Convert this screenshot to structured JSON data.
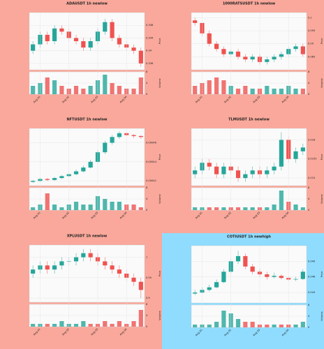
{
  "chart_data": [
    {
      "type": "candlestick",
      "title": "ADAUSDT 1h newlow",
      "background": "#f9a89b",
      "ylabel": "Price",
      "volume_label": "Volume",
      "categories": [
        null,
        "Aug 01",
        null,
        null,
        null,
        "Aug 02",
        null,
        null,
        null,
        "Aug 03",
        null,
        null,
        null,
        "Aug 04",
        null,
        null
      ],
      "open": [
        0.34,
        0.342,
        0.345,
        0.343,
        0.347,
        0.346,
        0.344,
        0.343,
        0.341,
        0.343,
        0.346,
        0.349,
        0.344,
        0.342,
        0.341,
        0.34
      ],
      "high": [
        0.343,
        0.346,
        0.346,
        0.348,
        0.348,
        0.347,
        0.345,
        0.344,
        0.344,
        0.347,
        0.35,
        0.35,
        0.345,
        0.343,
        0.342,
        0.341
      ],
      "low": [
        0.339,
        0.341,
        0.342,
        0.342,
        0.345,
        0.343,
        0.342,
        0.34,
        0.34,
        0.342,
        0.345,
        0.343,
        0.341,
        0.34,
        0.339,
        0.335
      ],
      "close": [
        0.342,
        0.345,
        0.343,
        0.347,
        0.346,
        0.344,
        0.343,
        0.341,
        0.343,
        0.346,
        0.349,
        0.344,
        0.342,
        0.341,
        0.34,
        0.336
      ],
      "volume": [
        3,
        4,
        6,
        5,
        3,
        2,
        3,
        2,
        3,
        5,
        7,
        4,
        3,
        2,
        2,
        6
      ],
      "ylim": [
        0.334,
        0.352
      ],
      "yticks": [
        0.336,
        0.34,
        0.344,
        0.348
      ],
      "volume_ylim": [
        0,
        8
      ],
      "volume_yticks": [
        0,
        4,
        8
      ],
      "up_color": "#26a69a",
      "down_color": "#ef5350"
    },
    {
      "type": "candlestick",
      "title": "1000RATSUSDT 1h newlow",
      "background": "#f9a89b",
      "ylabel": "Price",
      "volume_label": "Volume",
      "categories": [
        null,
        "Aug 01",
        null,
        null,
        null,
        "Aug 02",
        null,
        null,
        null,
        "Aug 03",
        null,
        null,
        null,
        "Aug 04",
        null,
        null
      ],
      "open": [
        0.099,
        0.098,
        0.094,
        0.09,
        0.088,
        0.086,
        0.087,
        0.085,
        0.084,
        0.085,
        0.083,
        0.084,
        0.085,
        0.086,
        0.088,
        0.089
      ],
      "high": [
        0.1,
        0.098,
        0.095,
        0.091,
        0.089,
        0.088,
        0.088,
        0.086,
        0.086,
        0.086,
        0.085,
        0.086,
        0.087,
        0.089,
        0.09,
        0.09
      ],
      "low": [
        0.097,
        0.093,
        0.089,
        0.087,
        0.085,
        0.085,
        0.084,
        0.083,
        0.083,
        0.082,
        0.082,
        0.083,
        0.084,
        0.085,
        0.087,
        0.085
      ],
      "close": [
        0.098,
        0.094,
        0.09,
        0.088,
        0.086,
        0.087,
        0.085,
        0.084,
        0.085,
        0.083,
        0.084,
        0.085,
        0.086,
        0.088,
        0.089,
        0.086
      ],
      "volume": [
        3,
        4,
        5,
        6,
        5,
        3,
        2,
        3,
        2,
        2,
        3,
        2,
        2,
        3,
        2,
        2
      ],
      "ylim": [
        0.08,
        0.102
      ],
      "yticks": [
        0.085,
        0.09,
        0.095,
        0.1
      ],
      "volume_ylim": [
        0,
        8
      ],
      "volume_yticks": [
        0,
        4,
        8
      ],
      "up_color": "#26a69a",
      "down_color": "#ef5350"
    },
    {
      "type": "candlestick",
      "title": "NFTUSDT 1h newlow",
      "background": "#f9a89b",
      "ylabel": "Price",
      "volume_label": "Volume",
      "categories": [
        null,
        "Aug 01",
        null,
        null,
        null,
        "Aug 02",
        null,
        null,
        null,
        "Aug 03",
        null,
        null,
        null,
        "Aug 04",
        null,
        null
      ],
      "open": [
        0.000419,
        0.00042,
        0.000422,
        0.000421,
        0.000423,
        0.000425,
        0.000427,
        0.00043,
        0.000434,
        0.00044,
        0.00045,
        0.00046,
        0.000466,
        0.00047,
        0.000468,
        0.000467
      ],
      "high": [
        0.000421,
        0.000423,
        0.000423,
        0.000424,
        0.000426,
        0.000428,
        0.000432,
        0.000436,
        0.000442,
        0.000452,
        0.000462,
        0.000468,
        0.000472,
        0.000471,
        0.000469,
        0.000468
      ],
      "low": [
        0.000418,
        0.000419,
        0.00042,
        0.00042,
        0.000422,
        0.000424,
        0.000426,
        0.000429,
        0.000433,
        0.000439,
        0.000448,
        0.000458,
        0.000464,
        0.000466,
        0.000465,
        0.000464
      ],
      "close": [
        0.00042,
        0.000422,
        0.000421,
        0.000423,
        0.000425,
        0.000427,
        0.00043,
        0.000434,
        0.00044,
        0.00045,
        0.00046,
        0.000466,
        0.00047,
        0.000468,
        0.000467,
        0.000466
      ],
      "volume": [
        1,
        2,
        6,
        2,
        1,
        2,
        3,
        2,
        2,
        5,
        4,
        3,
        3,
        2,
        2,
        1
      ],
      "ylim": [
        0.000415,
        0.000475
      ],
      "yticks": [
        0.00042,
        0.00044,
        0.00046
      ],
      "volume_ylim": [
        0,
        8
      ],
      "volume_yticks": [
        0,
        4,
        8
      ],
      "up_color": "#26a69a",
      "down_color": "#ef5350"
    },
    {
      "type": "candlestick",
      "title": "TLMUSDT 1h newlow",
      "background": "#f9a89b",
      "ylabel": "Price",
      "volume_label": "Volume",
      "categories": [
        null,
        "Aug 01",
        null,
        null,
        null,
        "Aug 02",
        null,
        null,
        null,
        "Aug 03",
        null,
        null,
        null,
        "Aug 04",
        null,
        null
      ],
      "open": [
        0.0151,
        0.0152,
        0.0154,
        0.0153,
        0.0151,
        0.0153,
        0.0152,
        0.015,
        0.0151,
        0.0152,
        0.0151,
        0.0152,
        0.0153,
        0.016,
        0.0155,
        0.0157
      ],
      "high": [
        0.0153,
        0.0155,
        0.0155,
        0.0154,
        0.0154,
        0.0154,
        0.0153,
        0.0152,
        0.0153,
        0.0153,
        0.0153,
        0.0154,
        0.0162,
        0.0161,
        0.0158,
        0.0159
      ],
      "low": [
        0.015,
        0.0151,
        0.0152,
        0.015,
        0.015,
        0.0151,
        0.0149,
        0.0149,
        0.015,
        0.015,
        0.015,
        0.0151,
        0.0152,
        0.0154,
        0.0154,
        0.0156
      ],
      "close": [
        0.0152,
        0.0154,
        0.0153,
        0.0151,
        0.0153,
        0.0152,
        0.015,
        0.0151,
        0.0152,
        0.0151,
        0.0152,
        0.0153,
        0.016,
        0.0155,
        0.0157,
        0.0158
      ],
      "volume": [
        1,
        1,
        1,
        1,
        1,
        1,
        1,
        1,
        1,
        1,
        1,
        2,
        7,
        3,
        2,
        1
      ],
      "ylim": [
        0.0148,
        0.0163
      ],
      "yticks": [
        0.015,
        0.0155,
        0.016
      ],
      "volume_ylim": [
        0,
        8
      ],
      "volume_yticks": [
        0,
        4,
        8
      ],
      "up_color": "#26a69a",
      "down_color": "#ef5350"
    },
    {
      "type": "candlestick",
      "title": "XPLUSDT 1h newlow",
      "background": "#f9a89b",
      "ylabel": "Price",
      "volume_label": "Volume",
      "categories": [
        null,
        "Aug 01",
        null,
        null,
        null,
        "Aug 02",
        null,
        null,
        null,
        "Aug 03",
        null,
        null,
        null,
        "Aug 04",
        null,
        null
      ],
      "open": [
        0.96,
        0.97,
        0.98,
        0.97,
        0.98,
        0.99,
        0.99,
        1.0,
        1.01,
        1.0,
        0.99,
        0.98,
        0.97,
        0.96,
        0.95,
        0.94
      ],
      "high": [
        0.98,
        0.99,
        0.99,
        0.99,
        1.0,
        1.0,
        1.01,
        1.02,
        1.02,
        1.01,
        1.0,
        0.99,
        0.98,
        0.97,
        0.96,
        0.95
      ],
      "low": [
        0.95,
        0.96,
        0.96,
        0.96,
        0.97,
        0.98,
        0.98,
        0.99,
        0.99,
        0.98,
        0.97,
        0.96,
        0.95,
        0.94,
        0.93,
        0.9
      ],
      "close": [
        0.97,
        0.98,
        0.97,
        0.98,
        0.99,
        0.99,
        1.0,
        1.01,
        1.0,
        0.99,
        0.98,
        0.97,
        0.96,
        0.95,
        0.94,
        0.92
      ],
      "volume": [
        1,
        1,
        1,
        1,
        2,
        1,
        1,
        2,
        1,
        1,
        2,
        1,
        2,
        1,
        2,
        6
      ],
      "ylim": [
        0.89,
        1.03
      ],
      "yticks": [
        0.9,
        0.95,
        1
      ],
      "volume_ylim": [
        0,
        8
      ],
      "volume_yticks": [
        0,
        4,
        8
      ],
      "up_color": "#26a69a",
      "down_color": "#ef5350"
    },
    {
      "type": "candlestick",
      "title": "COTIUSDT 1h newhigh",
      "background": "#8fdcff",
      "ylabel": "Price",
      "volume_label": "Volume",
      "categories": [
        null,
        "Aug 01",
        null,
        null,
        null,
        "Aug 02",
        null,
        null,
        null,
        "Aug 03",
        null,
        null,
        null,
        "Aug 04",
        null,
        null
      ],
      "open": [
        0.0428,
        0.043,
        0.0435,
        0.044,
        0.045,
        0.047,
        0.049,
        0.05,
        0.048,
        0.047,
        0.0465,
        0.046,
        0.0462,
        0.0458,
        0.0455,
        0.0456
      ],
      "high": [
        0.0435,
        0.044,
        0.0445,
        0.0455,
        0.0475,
        0.0495,
        0.051,
        0.0505,
        0.0485,
        0.0475,
        0.047,
        0.0468,
        0.0465,
        0.046,
        0.046,
        0.0475
      ],
      "low": [
        0.0425,
        0.0428,
        0.0432,
        0.0438,
        0.0448,
        0.0465,
        0.0485,
        0.0475,
        0.0465,
        0.046,
        0.0455,
        0.0457,
        0.0455,
        0.0452,
        0.0452,
        0.0454
      ],
      "close": [
        0.043,
        0.0435,
        0.044,
        0.045,
        0.047,
        0.049,
        0.05,
        0.048,
        0.047,
        0.0465,
        0.046,
        0.0462,
        0.0458,
        0.0455,
        0.0456,
        0.047
      ],
      "volume": [
        1,
        1,
        1,
        2,
        6,
        5,
        3,
        2,
        2,
        1,
        1,
        1,
        1,
        1,
        1,
        2
      ],
      "ylim": [
        0.041,
        0.052
      ],
      "yticks": [
        0.043,
        0.046,
        0.049
      ],
      "volume_ylim": [
        0,
        8
      ],
      "volume_yticks": [
        0,
        4,
        8
      ],
      "up_color": "#26a69a",
      "down_color": "#ef5350"
    }
  ]
}
